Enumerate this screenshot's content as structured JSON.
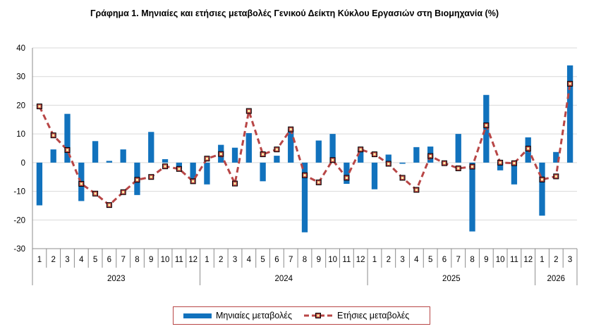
{
  "chart_data": {
    "type": "bar+line",
    "title": "Γράφημα 1. Μηνιαίες και ετήσιες μεταβολές  Γενικού Δείκτη Κύκλου Εργασιών στη Βιομηχανία (%)",
    "ylim": [
      -30,
      40
    ],
    "yticks": [
      -30,
      -20,
      -10,
      0,
      10,
      20,
      30,
      40
    ],
    "categories": [
      "1",
      "2",
      "3",
      "4",
      "5",
      "6",
      "7",
      "8",
      "9",
      "10",
      "11",
      "12",
      "1",
      "2",
      "3",
      "4",
      "5",
      "6",
      "7",
      "8",
      "9",
      "10",
      "11",
      "12",
      "1",
      "2",
      "3",
      "4",
      "5",
      "6",
      "7",
      "8",
      "9",
      "10",
      "11",
      "12",
      "1",
      "2",
      "3"
    ],
    "years": [
      {
        "label": "2023",
        "count": 12
      },
      {
        "label": "2024",
        "count": 12
      },
      {
        "label": "2025",
        "count": 12
      },
      {
        "label": "2026",
        "count": 3
      }
    ],
    "series": [
      {
        "name": "Μηνιαίες μεταβολές",
        "type": "bar",
        "color": "#1172bd",
        "values": [
          -14.9,
          4.6,
          17.0,
          -13.4,
          7.5,
          0.6,
          4.6,
          -11.3,
          10.7,
          1.2,
          -2.2,
          -5.6,
          -7.6,
          6.2,
          5.2,
          10.3,
          -6.5,
          2.4,
          11.6,
          -24.3,
          7.7,
          10.0,
          -7.4,
          4.5,
          -9.3,
          2.8,
          -0.4,
          5.4,
          5.6,
          -0.3,
          10.0,
          -24.0,
          23.6,
          -2.7,
          -7.6,
          8.8,
          -18.5,
          3.7,
          33.9
        ]
      },
      {
        "name": "Ετήσιες μεταβολές",
        "type": "line",
        "color": "#b84646",
        "values": [
          19.6,
          9.5,
          4.4,
          -7.4,
          -10.8,
          -14.8,
          -10.3,
          -6.0,
          -5.0,
          -1.3,
          -2.2,
          -6.5,
          1.4,
          3.0,
          -7.3,
          18.0,
          2.9,
          4.6,
          11.6,
          -4.4,
          -6.9,
          0.9,
          -5.3,
          4.6,
          2.9,
          -0.4,
          -5.3,
          -9.5,
          2.3,
          -0.2,
          -2.0,
          -1.4,
          13.0,
          0.0,
          -0.2,
          4.9,
          -5.9,
          -4.8,
          27.5
        ]
      }
    ]
  }
}
